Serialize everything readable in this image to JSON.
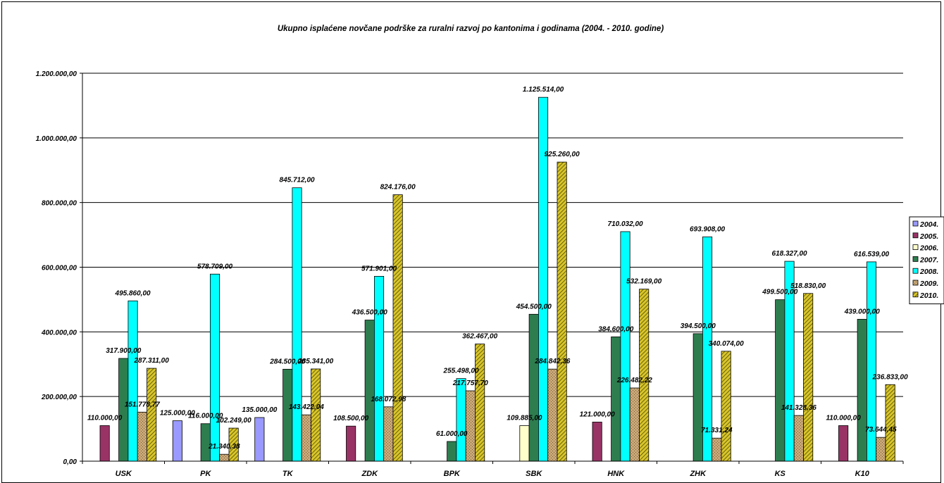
{
  "chart_data": {
    "type": "bar",
    "title": "Ukupno isplaćene novčane podrške za ruralni razvoj po kantonima i godinama (2004. - 2010. godine)",
    "xlabel": "",
    "ylabel": "",
    "ylim": [
      0,
      1200000
    ],
    "yticks": [
      0,
      200000,
      400000,
      600000,
      800000,
      1000000,
      1200000
    ],
    "ytick_labels": [
      "0,00",
      "200.000,00",
      "400.000,00",
      "600.000,00",
      "800.000,00",
      "1.000.000,00",
      "1.200.000,00"
    ],
    "grid": true,
    "legend_position": "right",
    "categories": [
      "USK",
      "PK",
      "TK",
      "ZDK",
      "BPK",
      "SBK",
      "HNK",
      "ZHK",
      "KS",
      "K10"
    ],
    "series": [
      {
        "name": "2004.",
        "color": "#9999ff",
        "pattern": "solid",
        "values": [
          null,
          125000,
          135000,
          null,
          null,
          null,
          null,
          null,
          null,
          null
        ],
        "labels": [
          "",
          "125.000,00",
          "135.000,00",
          "",
          "",
          "",
          "",
          "",
          "",
          ""
        ]
      },
      {
        "name": "2005.",
        "color": "#993366",
        "pattern": "solid",
        "values": [
          110000,
          null,
          null,
          108500,
          null,
          null,
          121000,
          null,
          null,
          110000
        ],
        "labels": [
          "110.000,00",
          "",
          "",
          "108.500,00",
          "",
          "",
          "121.000,00",
          "",
          "",
          "110.000,00"
        ]
      },
      {
        "name": "2006.",
        "color": "#ffffcc",
        "pattern": "solid",
        "values": [
          null,
          null,
          null,
          null,
          null,
          109885,
          null,
          null,
          null,
          null
        ],
        "labels": [
          "",
          "",
          "",
          "",
          "",
          "109.885,00",
          "",
          "",
          "",
          ""
        ]
      },
      {
        "name": "2007.",
        "color": "#2e7d4f",
        "pattern": "solid",
        "values": [
          317900,
          116000,
          284500,
          436500,
          61000,
          454500,
          384600,
          394500,
          499500,
          439000
        ],
        "labels": [
          "317.900,00",
          "116.000,00",
          "284.500,00",
          "436.500,00",
          "61.000,00",
          "454.500,00",
          "384.600,00",
          "394.500,00",
          "499.500,00",
          "439.000,00"
        ]
      },
      {
        "name": "2008.",
        "color": "#00ffff",
        "pattern": "solid",
        "values": [
          495860,
          578709,
          845712,
          571901,
          255498,
          1125514,
          710032,
          693908,
          618327,
          616539
        ],
        "labels": [
          "495.860,00",
          "578.709,00",
          "845.712,00",
          "571.901,00",
          "255.498,00",
          "1.125.514,00",
          "710.032,00",
          "693.908,00",
          "618.327,00",
          "616.539,00"
        ]
      },
      {
        "name": "2009.",
        "color": "#c8a878",
        "pattern": "dots",
        "values": [
          151778.77,
          21340.38,
          143422.04,
          168072.98,
          217757.7,
          284842.36,
          226482.22,
          71331.24,
          141328.36,
          73644.45
        ],
        "labels": [
          "151.778,77",
          "21.340,38",
          "143.422,04",
          "168.072,98",
          "217.757,70",
          "284.842,36",
          "226.482,22",
          "71.331,24",
          "141.328,36",
          "73.644,45"
        ]
      },
      {
        "name": "2010.",
        "color": "#d4c02a",
        "pattern": "hatch",
        "values": [
          287311,
          102249,
          285341,
          824176,
          362467,
          925260,
          532169,
          340074,
          518830,
          236833
        ],
        "labels": [
          "287.311,00",
          "102.249,00",
          "285.341,00",
          "824.176,00",
          "362.467,00",
          "925.260,00",
          "532.169,00",
          "340.074,00",
          "518.830,00",
          "236.833,00"
        ]
      }
    ]
  }
}
